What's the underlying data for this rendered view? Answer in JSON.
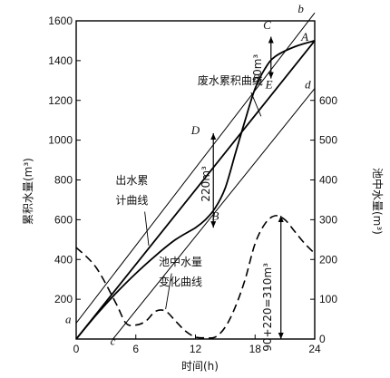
{
  "chart_data": {
    "type": "line",
    "xlabel": "时间(h)",
    "ylabel_left": "累积水量(m³)",
    "ylabel_right": "池中水量(m³)",
    "xlim": [
      0,
      24
    ],
    "ylim_left": [
      0,
      1600
    ],
    "ylim_right": [
      0,
      800
    ],
    "x_ticks": [
      0,
      6,
      12,
      18,
      24
    ],
    "x_tick_labels": [
      "0",
      "6",
      "12",
      "18",
      "24"
    ],
    "y_left_ticks": [
      200,
      400,
      600,
      800,
      1000,
      1200,
      1400,
      1600
    ],
    "y_left_tick_labels": [
      "200",
      "400",
      "600",
      "800",
      "1000",
      "1200",
      "1400",
      "1600"
    ],
    "y_right_ticks": [
      0,
      100,
      200,
      300,
      400,
      500,
      600
    ],
    "y_right_tick_labels": [
      "0",
      "100",
      "200",
      "300",
      "400",
      "500",
      "600"
    ],
    "series": [
      {
        "name": "出水累计曲线",
        "axis": "left",
        "style": "solid",
        "x": [
          0,
          24
        ],
        "y": [
          0,
          1500
        ]
      },
      {
        "name": "废水累积曲线",
        "axis": "left",
        "style": "solid",
        "x": [
          0,
          2,
          4,
          6,
          8,
          10,
          12,
          13,
          14,
          15,
          16,
          17,
          18,
          19,
          20,
          22,
          24
        ],
        "y": [
          0,
          120,
          230,
          330,
          420,
          500,
          560,
          600,
          660,
          760,
          930,
          1100,
          1260,
          1360,
          1420,
          1470,
          1500
        ]
      },
      {
        "name": "池中水量变化曲线",
        "axis": "right",
        "style": "dashed",
        "x": [
          0,
          2,
          4,
          5,
          6,
          7,
          8,
          9,
          10,
          11,
          12,
          13,
          14,
          15,
          16,
          17,
          18,
          19,
          20,
          21,
          22,
          23,
          24
        ],
        "y": [
          230,
          180,
          90,
          40,
          35,
          45,
          70,
          70,
          45,
          20,
          5,
          3,
          5,
          30,
          80,
          150,
          240,
          290,
          310,
          300,
          270,
          240,
          215
        ]
      }
    ],
    "reference_lines": [
      {
        "id": "a-b",
        "x": [
          0,
          24
        ],
        "y": [
          80,
          1640
        ]
      },
      {
        "id": "c-d",
        "x": [
          3.7,
          24
        ],
        "y": [
          0,
          1260
        ]
      }
    ],
    "annotations": [
      {
        "text": "C",
        "x": 19.2,
        "y": 1560
      },
      {
        "text": "b",
        "x": 22.6,
        "y": 1640
      },
      {
        "text": "A",
        "x": 23.0,
        "y": 1500
      },
      {
        "text": "E",
        "x": 19.4,
        "y": 1260
      },
      {
        "text": "d",
        "x": 23.3,
        "y": 1260
      },
      {
        "text": "D",
        "x": 12.0,
        "y": 1030
      },
      {
        "text": "B",
        "x": 14.0,
        "y": 600
      },
      {
        "text": "a",
        "x": -0.8,
        "y": 80
      },
      {
        "text": "c",
        "x": 3.7,
        "y": -30
      },
      {
        "text": "90m³",
        "x": 18.6,
        "y": 1360
      },
      {
        "text": "220m³",
        "x": 13.4,
        "y": 780
      },
      {
        "text": "90+220=310m³",
        "x": 19.6,
        "y": 160
      },
      {
        "text": "废水累积曲线",
        "x": 15.5,
        "y": 1280
      },
      {
        "text": "出水累",
        "x": 5.6,
        "y": 780
      },
      {
        "text": "计曲线",
        "x": 5.6,
        "y": 680
      },
      {
        "text": "池中水量",
        "x": 10.5,
        "y": 370
      },
      {
        "text": "变化曲线",
        "x": 10.5,
        "y": 270
      }
    ],
    "grid": false
  }
}
